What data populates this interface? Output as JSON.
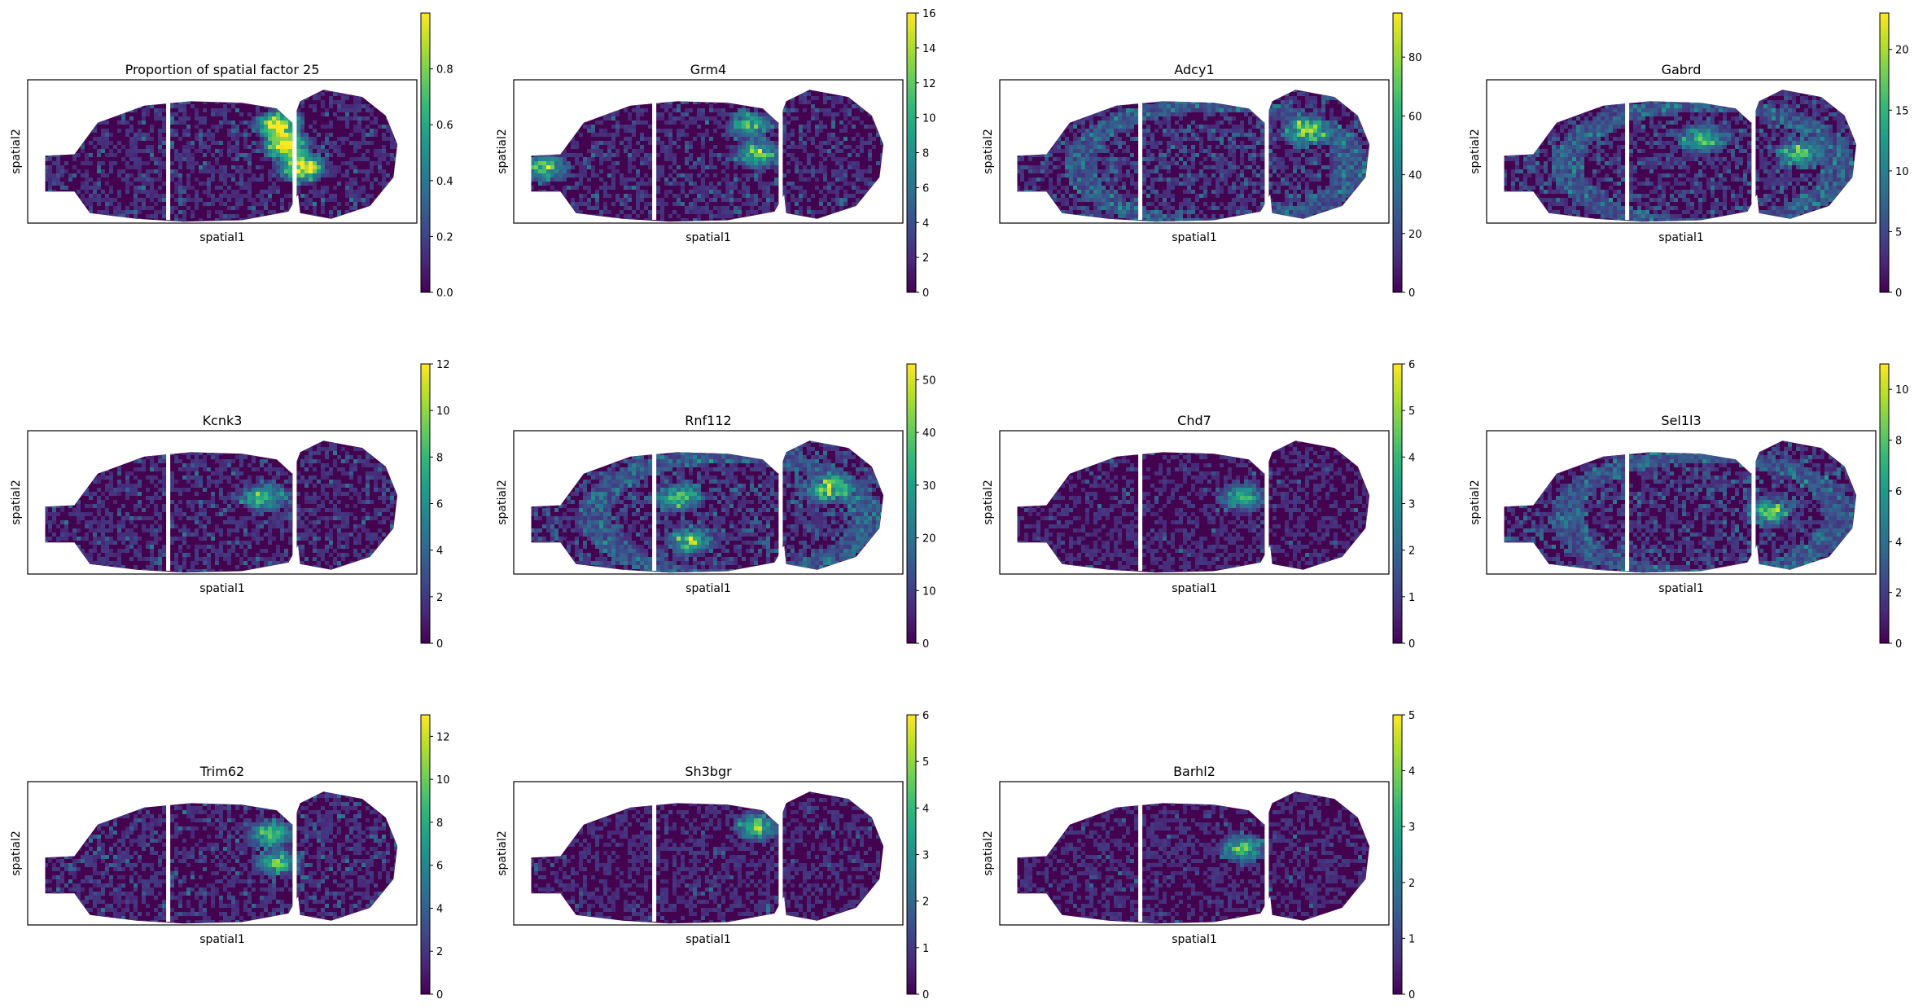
{
  "figure": {
    "colormap": [
      "#440154",
      "#482878",
      "#3e4989",
      "#31688e",
      "#26828e",
      "#1f9e89",
      "#35b779",
      "#6ece58",
      "#b5de2b",
      "#fde725"
    ],
    "background_color": "#ffffff",
    "tissue_base_color": "#44034f"
  },
  "chart_data": [
    {
      "type": "heatmap",
      "title": "Proportion of spatial factor 25",
      "xlabel": "spatial1",
      "ylabel": "spatial2",
      "colorbar": {
        "vmin": 0,
        "vmax": 1.0,
        "ticks": [
          0.0,
          0.2,
          0.4,
          0.6,
          0.8
        ],
        "tick_labels": [
          "0.0",
          "0.2",
          "0.4",
          "0.6",
          "0.8"
        ]
      },
      "pattern": "factor",
      "hotspots": [
        [
          0.64,
          0.3
        ],
        [
          0.66,
          0.45
        ],
        [
          0.7,
          0.6
        ]
      ]
    },
    {
      "type": "heatmap",
      "title": "Grm4",
      "xlabel": "spatial1",
      "ylabel": "spatial2",
      "colorbar": {
        "vmin": 0,
        "vmax": 16,
        "ticks": [
          0,
          2,
          4,
          6,
          8,
          10,
          12,
          14,
          16
        ],
        "tick_labels": [
          "0",
          "2",
          "4",
          "6",
          "8",
          "10",
          "12",
          "14",
          "16"
        ]
      },
      "pattern": "regional",
      "hotspots": [
        [
          0.6,
          0.3
        ],
        [
          0.62,
          0.5
        ],
        [
          0.08,
          0.6
        ]
      ]
    },
    {
      "type": "heatmap",
      "title": "Adcy1",
      "xlabel": "spatial1",
      "ylabel": "spatial2",
      "colorbar": {
        "vmin": 0,
        "vmax": 95,
        "ticks": [
          0,
          20,
          40,
          60,
          80
        ],
        "tick_labels": [
          "0",
          "20",
          "40",
          "60",
          "80"
        ]
      },
      "pattern": "cortex",
      "hotspots": [
        [
          0.78,
          0.35
        ]
      ]
    },
    {
      "type": "heatmap",
      "title": "Gabrd",
      "xlabel": "spatial1",
      "ylabel": "spatial2",
      "colorbar": {
        "vmin": 0,
        "vmax": 23,
        "ticks": [
          0,
          5,
          10,
          15,
          20
        ],
        "tick_labels": [
          "0",
          "5",
          "10",
          "15",
          "20"
        ]
      },
      "pattern": "cortex",
      "hotspots": [
        [
          0.8,
          0.5
        ],
        [
          0.55,
          0.4
        ]
      ]
    },
    {
      "type": "heatmap",
      "title": "Kcnk3",
      "xlabel": "spatial1",
      "ylabel": "spatial2",
      "colorbar": {
        "vmin": 0,
        "vmax": 12,
        "ticks": [
          0,
          2,
          4,
          6,
          8,
          10,
          12
        ],
        "tick_labels": [
          "0",
          "2",
          "4",
          "6",
          "8",
          "10",
          "12"
        ]
      },
      "pattern": "regional",
      "hotspots": [
        [
          0.6,
          0.45
        ]
      ]
    },
    {
      "type": "heatmap",
      "title": "Rnf112",
      "xlabel": "spatial1",
      "ylabel": "spatial2",
      "colorbar": {
        "vmin": 0,
        "vmax": 53,
        "ticks": [
          0,
          10,
          20,
          30,
          40,
          50
        ],
        "tick_labels": [
          "0",
          "10",
          "20",
          "30",
          "40",
          "50"
        ]
      },
      "pattern": "cortex",
      "hotspots": [
        [
          0.8,
          0.4
        ],
        [
          0.42,
          0.45
        ],
        [
          0.45,
          0.75
        ]
      ]
    },
    {
      "type": "heatmap",
      "title": "Chd7",
      "xlabel": "spatial1",
      "ylabel": "spatial2",
      "colorbar": {
        "vmin": 0,
        "vmax": 6,
        "ticks": [
          0,
          1,
          2,
          3,
          4,
          5,
          6
        ],
        "tick_labels": [
          "0",
          "1",
          "2",
          "3",
          "4",
          "5",
          "6"
        ]
      },
      "pattern": "sparse",
      "hotspots": [
        [
          0.62,
          0.45
        ]
      ]
    },
    {
      "type": "heatmap",
      "title": "Sel1l3",
      "xlabel": "spatial1",
      "ylabel": "spatial2",
      "colorbar": {
        "vmin": 0,
        "vmax": 11,
        "ticks": [
          0,
          2,
          4,
          6,
          8,
          10
        ],
        "tick_labels": [
          "0",
          "2",
          "4",
          "6",
          "8",
          "10"
        ]
      },
      "pattern": "cortex",
      "hotspots": [
        [
          0.72,
          0.55
        ]
      ]
    },
    {
      "type": "heatmap",
      "title": "Trim62",
      "xlabel": "spatial1",
      "ylabel": "spatial2",
      "colorbar": {
        "vmin": 0,
        "vmax": 13,
        "ticks": [
          0,
          2,
          4,
          6,
          8,
          10,
          12
        ],
        "tick_labels": [
          "0",
          "2",
          "4",
          "6",
          "8",
          "10",
          "12"
        ]
      },
      "pattern": "regional",
      "hotspots": [
        [
          0.62,
          0.35
        ],
        [
          0.64,
          0.55
        ]
      ]
    },
    {
      "type": "heatmap",
      "title": "Sh3bgr",
      "xlabel": "spatial1",
      "ylabel": "spatial2",
      "colorbar": {
        "vmin": 0,
        "vmax": 6,
        "ticks": [
          0,
          1,
          2,
          3,
          4,
          5,
          6
        ],
        "tick_labels": [
          "0",
          "1",
          "2",
          "3",
          "4",
          "5",
          "6"
        ]
      },
      "pattern": "sparse",
      "hotspots": [
        [
          0.62,
          0.3
        ]
      ]
    },
    {
      "type": "heatmap",
      "title": "Barhl2",
      "xlabel": "spatial1",
      "ylabel": "spatial2",
      "colorbar": {
        "vmin": 0,
        "vmax": 5,
        "ticks": [
          0,
          1,
          2,
          3,
          4,
          5
        ],
        "tick_labels": [
          "0",
          "1",
          "2",
          "3",
          "4",
          "5"
        ]
      },
      "pattern": "sparse",
      "hotspots": [
        [
          0.62,
          0.45
        ]
      ]
    }
  ]
}
